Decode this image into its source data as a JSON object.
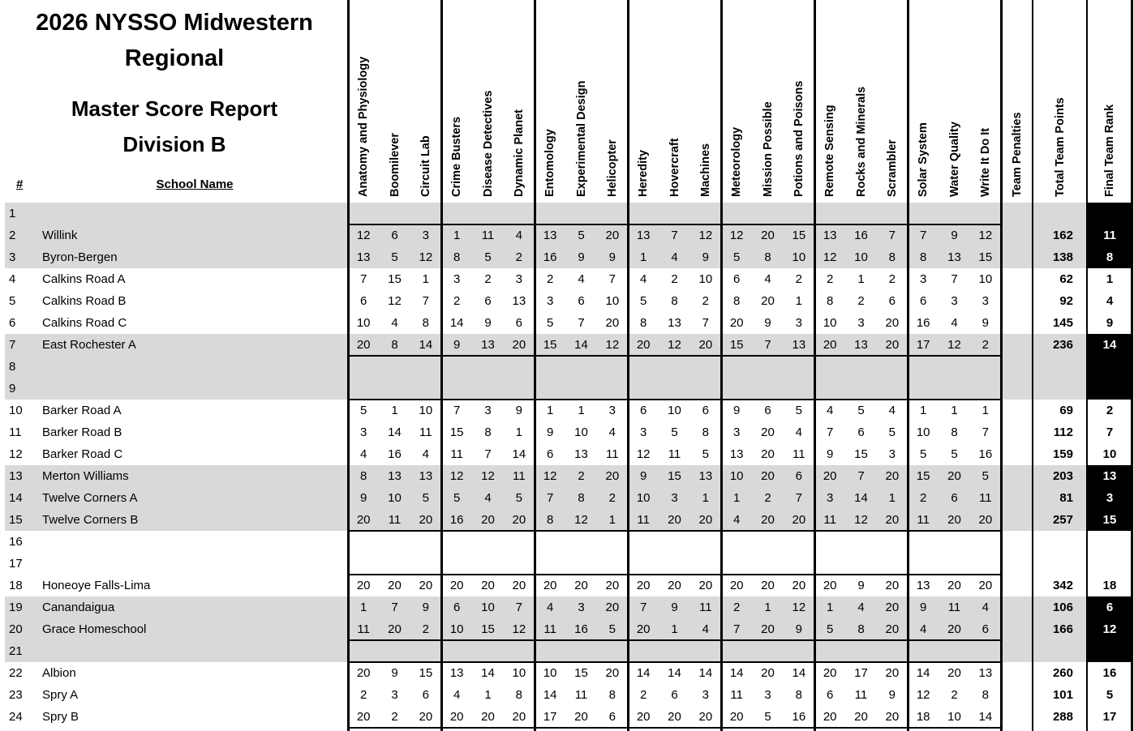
{
  "report": {
    "title": "2026 NYSSO Midwestern Regional",
    "subtitle_line1": "Master Score Report",
    "subtitle_line2": "Division B"
  },
  "table": {
    "number_header": "#",
    "school_header": "School Name",
    "event_columns": [
      "Anatomy and Physiology",
      "Boomilever",
      "Circuit Lab",
      "Crime Busters",
      "Disease Detectives",
      "Dynamic Planet",
      "Entomology",
      "Experimental Design",
      "Helicopter",
      "Heredity",
      "Hovercraft",
      "Machines",
      "Meteorology",
      "Mission Possible",
      "Potions and Poisons",
      "Remote Sensing",
      "Rocks and Minerals",
      "Scrambler",
      "Solar System",
      "Water Quality",
      "Write It Do It"
    ],
    "penalties_header": "Team Penalties",
    "total_header": "Total Team Points",
    "rank_header": "Final Team Rank",
    "rows": [
      {
        "num": "1",
        "school": "",
        "scores": null,
        "penalty": "",
        "total": "",
        "rank": ""
      },
      {
        "num": "2",
        "school": "Willink",
        "scores": [
          12,
          6,
          3,
          1,
          11,
          4,
          13,
          5,
          20,
          13,
          7,
          12,
          12,
          20,
          15,
          13,
          16,
          7,
          7,
          9,
          12
        ],
        "penalty": "",
        "total": "162",
        "rank": "11"
      },
      {
        "num": "3",
        "school": "Byron-Bergen",
        "scores": [
          13,
          5,
          12,
          8,
          5,
          2,
          16,
          9,
          9,
          1,
          4,
          9,
          5,
          8,
          10,
          12,
          10,
          8,
          8,
          13,
          15
        ],
        "penalty": "",
        "total": "138",
        "rank": "8"
      },
      {
        "num": "4",
        "school": "Calkins Road A",
        "scores": [
          7,
          15,
          1,
          3,
          2,
          3,
          2,
          4,
          7,
          4,
          2,
          10,
          6,
          4,
          2,
          2,
          1,
          2,
          3,
          7,
          10
        ],
        "penalty": "",
        "total": "62",
        "rank": "1"
      },
      {
        "num": "5",
        "school": "Calkins Road B",
        "scores": [
          6,
          12,
          7,
          2,
          6,
          13,
          3,
          6,
          10,
          5,
          8,
          2,
          8,
          20,
          1,
          8,
          2,
          6,
          6,
          3,
          3
        ],
        "penalty": "",
        "total": "92",
        "rank": "4"
      },
      {
        "num": "6",
        "school": "Calkins Road C",
        "scores": [
          10,
          4,
          8,
          14,
          9,
          6,
          5,
          7,
          20,
          8,
          13,
          7,
          20,
          9,
          3,
          10,
          3,
          20,
          16,
          4,
          9
        ],
        "penalty": "",
        "total": "145",
        "rank": "9"
      },
      {
        "num": "7",
        "school": "East Rochester A",
        "scores": [
          20,
          8,
          14,
          9,
          13,
          20,
          15,
          14,
          12,
          20,
          12,
          20,
          15,
          7,
          13,
          20,
          13,
          20,
          17,
          12,
          2
        ],
        "penalty": "",
        "total": "236",
        "rank": "14"
      },
      {
        "num": "8",
        "school": "",
        "scores": null,
        "penalty": "",
        "total": "",
        "rank": ""
      },
      {
        "num": "9",
        "school": "",
        "scores": null,
        "penalty": "",
        "total": "",
        "rank": ""
      },
      {
        "num": "10",
        "school": "Barker Road A",
        "scores": [
          5,
          1,
          10,
          7,
          3,
          9,
          1,
          1,
          3,
          6,
          10,
          6,
          9,
          6,
          5,
          4,
          5,
          4,
          1,
          1,
          1
        ],
        "penalty": "",
        "total": "69",
        "rank": "2"
      },
      {
        "num": "11",
        "school": "Barker Road B",
        "scores": [
          3,
          14,
          11,
          15,
          8,
          1,
          9,
          10,
          4,
          3,
          5,
          8,
          3,
          20,
          4,
          7,
          6,
          5,
          10,
          8,
          7
        ],
        "penalty": "",
        "total": "112",
        "rank": "7"
      },
      {
        "num": "12",
        "school": "Barker Road C",
        "scores": [
          4,
          16,
          4,
          11,
          7,
          14,
          6,
          13,
          11,
          12,
          11,
          5,
          13,
          20,
          11,
          9,
          15,
          3,
          5,
          5,
          16
        ],
        "penalty": "",
        "total": "159",
        "rank": "10"
      },
      {
        "num": "13",
        "school": "Merton Williams",
        "scores": [
          8,
          13,
          13,
          12,
          12,
          11,
          12,
          2,
          20,
          9,
          15,
          13,
          10,
          20,
          6,
          20,
          7,
          20,
          15,
          20,
          5
        ],
        "penalty": "",
        "total": "203",
        "rank": "13"
      },
      {
        "num": "14",
        "school": "Twelve Corners A",
        "scores": [
          9,
          10,
          5,
          5,
          4,
          5,
          7,
          8,
          2,
          10,
          3,
          1,
          1,
          2,
          7,
          3,
          14,
          1,
          2,
          6,
          11
        ],
        "penalty": "",
        "total": "81",
        "rank": "3"
      },
      {
        "num": "15",
        "school": "Twelve Corners B",
        "scores": [
          20,
          11,
          20,
          16,
          20,
          20,
          8,
          12,
          1,
          11,
          20,
          20,
          4,
          20,
          20,
          11,
          12,
          20,
          11,
          20,
          20
        ],
        "penalty": "",
        "total": "257",
        "rank": "15"
      },
      {
        "num": "16",
        "school": "",
        "scores": null,
        "penalty": "",
        "total": "",
        "rank": ""
      },
      {
        "num": "17",
        "school": "",
        "scores": null,
        "penalty": "",
        "total": "",
        "rank": ""
      },
      {
        "num": "18",
        "school": "Honeoye Falls-Lima",
        "scores": [
          20,
          20,
          20,
          20,
          20,
          20,
          20,
          20,
          20,
          20,
          20,
          20,
          20,
          20,
          20,
          20,
          9,
          20,
          13,
          20,
          20
        ],
        "penalty": "",
        "total": "342",
        "rank": "18"
      },
      {
        "num": "19",
        "school": "Canandaigua",
        "scores": [
          1,
          7,
          9,
          6,
          10,
          7,
          4,
          3,
          20,
          7,
          9,
          11,
          2,
          1,
          12,
          1,
          4,
          20,
          9,
          11,
          4
        ],
        "penalty": "",
        "total": "106",
        "rank": "6"
      },
      {
        "num": "20",
        "school": "Grace Homeschool",
        "scores": [
          11,
          20,
          2,
          10,
          15,
          12,
          11,
          16,
          5,
          20,
          1,
          4,
          7,
          20,
          9,
          5,
          8,
          20,
          4,
          20,
          6
        ],
        "penalty": "",
        "total": "166",
        "rank": "12"
      },
      {
        "num": "21",
        "school": "",
        "scores": null,
        "penalty": "",
        "total": "",
        "rank": ""
      },
      {
        "num": "22",
        "school": "Albion",
        "scores": [
          20,
          9,
          15,
          13,
          14,
          10,
          10,
          15,
          20,
          14,
          14,
          14,
          14,
          20,
          14,
          20,
          17,
          20,
          14,
          20,
          13
        ],
        "penalty": "",
        "total": "260",
        "rank": "16"
      },
      {
        "num": "23",
        "school": "Spry A",
        "scores": [
          2,
          3,
          6,
          4,
          1,
          8,
          14,
          11,
          8,
          2,
          6,
          3,
          11,
          3,
          8,
          6,
          11,
          9,
          12,
          2,
          8
        ],
        "penalty": "",
        "total": "101",
        "rank": "5"
      },
      {
        "num": "24",
        "school": "Spry B",
        "scores": [
          20,
          2,
          20,
          20,
          20,
          20,
          17,
          20,
          6,
          20,
          20,
          20,
          20,
          5,
          16,
          20,
          20,
          20,
          18,
          10,
          14
        ],
        "penalty": "",
        "total": "288",
        "rank": "17"
      }
    ]
  },
  "colors": {
    "row_shade": "#d9d9d9",
    "rank_highlight_bg": "#000000",
    "rank_highlight_text": "#ffffff",
    "grid_line": "#000000"
  }
}
